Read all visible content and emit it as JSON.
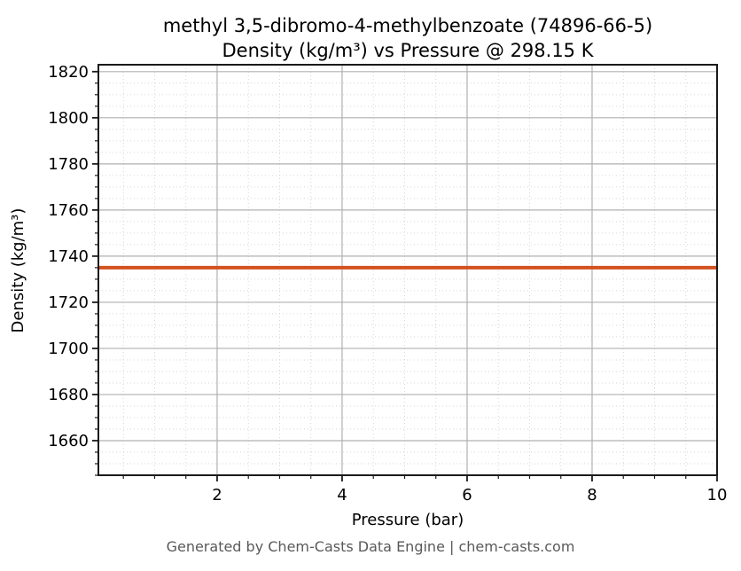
{
  "figure": {
    "footer": "Generated by Chem-Casts Data Engine | chem-casts.com"
  },
  "chart_data": {
    "type": "line",
    "title_line1": "methyl 3,5-dibromo-4-methylbenzoate (74896-66-5)",
    "title_line2": "Density (kg/m³) vs Pressure @ 298.15 K",
    "xlabel": "Pressure (bar)",
    "ylabel": "Density (kg/m³)",
    "xlim": [
      0.1,
      10
    ],
    "ylim": [
      1645,
      1823
    ],
    "x_major_ticks": [
      2,
      4,
      6,
      8,
      10
    ],
    "x_minor_step": 0.5,
    "y_major_ticks": [
      1660,
      1680,
      1700,
      1720,
      1740,
      1760,
      1780,
      1800,
      1820
    ],
    "y_minor_step": 5,
    "grid": {
      "major": true,
      "minor": true,
      "minor_style": "dotted"
    },
    "legend": {
      "visible": false
    },
    "series": [
      {
        "name": "density",
        "color": "#d2521f",
        "x": [
          0.1,
          10
        ],
        "y": [
          1735,
          1735
        ]
      }
    ],
    "colors": {
      "line": "#d2521f",
      "grid_major": "#b0b0b0",
      "grid_minor": "#d6d6d6",
      "spine": "#1a1a1a",
      "tick": "#1a1a1a",
      "text": "#000000",
      "footer_text": "#595959",
      "background": "#ffffff"
    }
  }
}
